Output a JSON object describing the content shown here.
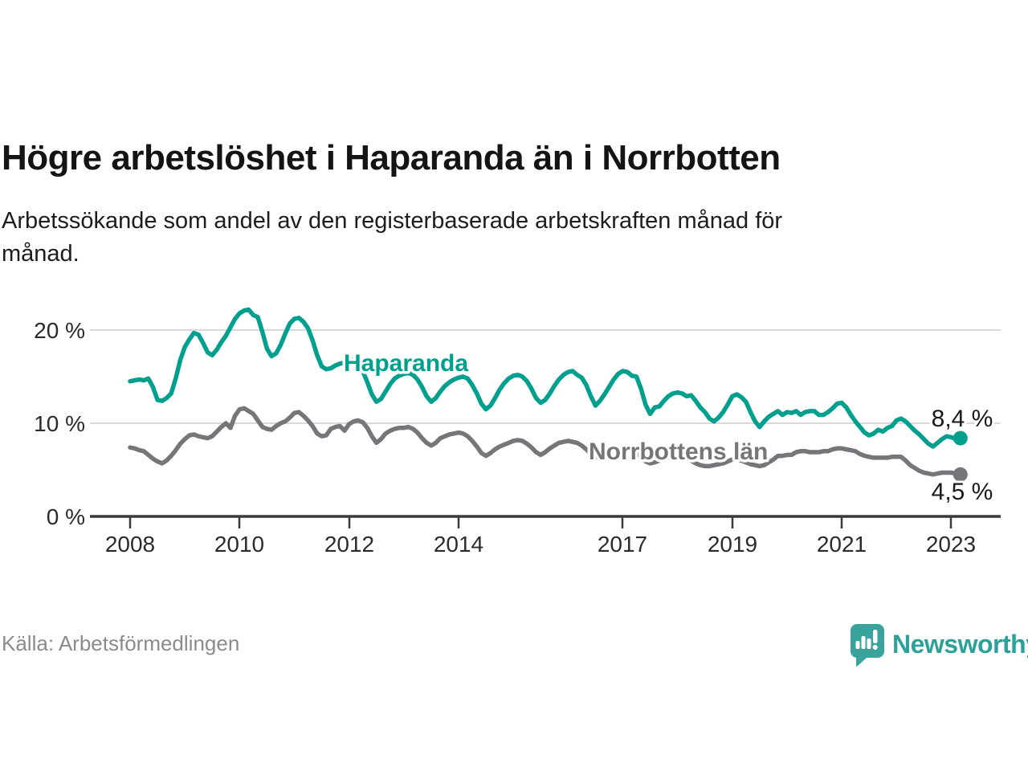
{
  "header": {
    "title": "Högre arbetslöshet i Haparanda än i Norrbotten",
    "subtitle": "Arbetssökande som andel av den registerbaserade arbetskraften månad för månad."
  },
  "footer": {
    "source": "Källa: Arbetsförmedlingen",
    "brand": "Newsworthy"
  },
  "colors": {
    "haparanda": "#009f8e",
    "norrbotten": "#76767a",
    "grid": "#d9d9d9",
    "axis": "#3a3a3e",
    "logo_teal": "#3ba39d"
  },
  "chart_data": {
    "type": "line",
    "title": "Högre arbetslöshet i Haparanda än i Norrbotten",
    "subtitle": "Arbetssökande som andel av den registerbaserade arbetskraften månad för månad.",
    "unit": "percent of registered labour force",
    "x_start": "2008-01",
    "x_end": "2023-03",
    "x_frequency": "monthly",
    "x_ticks": [
      "2008",
      "2010",
      "2012",
      "2014",
      "2017",
      "2019",
      "2021",
      "2023"
    ],
    "y_ticks": [
      "0 %",
      "10 %",
      "20 %"
    ],
    "y_gridlines": [
      0,
      10,
      20
    ],
    "ylim": [
      0,
      23
    ],
    "grid": "horizontal",
    "legend_position": "inline-labels",
    "series": [
      {
        "name": "Haparanda",
        "color": "#009f8e",
        "end_label": "8,4 %",
        "last_value": 8.4,
        "values": [
          14.5,
          14.6,
          14.7,
          14.6,
          14.8,
          13.9,
          12.5,
          12.4,
          12.7,
          13.2,
          14.8,
          16.8,
          18.2,
          19.0,
          19.7,
          19.5,
          18.6,
          17.6,
          17.3,
          17.9,
          18.7,
          19.4,
          20.3,
          21.2,
          21.8,
          22.1,
          22.2,
          21.6,
          21.4,
          19.8,
          18.0,
          17.2,
          17.5,
          18.4,
          19.6,
          20.7,
          21.2,
          21.3,
          20.9,
          20.2,
          18.9,
          17.3,
          16.1,
          15.8,
          15.9,
          16.2,
          16.4,
          16.5,
          16.7,
          16.8,
          16.4,
          15.6,
          14.4,
          13.1,
          12.3,
          12.6,
          13.4,
          14.2,
          14.8,
          15.1,
          15.3,
          15.4,
          15.2,
          14.7,
          13.9,
          12.9,
          12.3,
          12.7,
          13.4,
          14.0,
          14.4,
          14.7,
          14.9,
          15.0,
          14.8,
          14.1,
          13.2,
          12.1,
          11.5,
          11.9,
          12.7,
          13.6,
          14.3,
          14.8,
          15.1,
          15.2,
          15.0,
          14.5,
          13.7,
          12.7,
          12.2,
          12.5,
          13.2,
          14.0,
          14.7,
          15.2,
          15.5,
          15.6,
          15.2,
          14.9,
          14.1,
          12.9,
          11.9,
          12.4,
          13.1,
          13.9,
          14.7,
          15.3,
          15.6,
          15.5,
          15.1,
          15.0,
          13.7,
          12.0,
          11.0,
          11.7,
          11.8,
          12.4,
          12.9,
          13.2,
          13.3,
          13.2,
          12.9,
          13.0,
          12.4,
          11.7,
          11.2,
          10.5,
          10.2,
          10.6,
          11.2,
          12.0,
          12.9,
          13.1,
          12.8,
          12.3,
          11.2,
          10.2,
          9.6,
          10.2,
          10.7,
          11.0,
          11.3,
          10.9,
          11.2,
          11.1,
          11.3,
          10.9,
          11.2,
          11.3,
          11.3,
          10.9,
          10.9,
          11.2,
          11.6,
          12.1,
          12.2,
          11.7,
          10.9,
          10.2,
          9.6,
          9.0,
          8.7,
          8.9,
          9.3,
          9.1,
          9.5,
          9.7,
          10.3,
          10.5,
          10.2,
          9.7,
          9.2,
          8.8,
          8.3,
          7.8,
          7.5,
          7.9,
          8.3,
          8.6,
          8.5,
          8.3,
          8.4
        ]
      },
      {
        "name": "Norrbottens län",
        "color": "#76767a",
        "end_label": "4,5 %",
        "last_value": 4.5,
        "values": [
          7.4,
          7.3,
          7.1,
          7.0,
          6.6,
          6.2,
          5.9,
          5.7,
          6.0,
          6.5,
          7.1,
          7.8,
          8.3,
          8.7,
          8.8,
          8.6,
          8.5,
          8.4,
          8.6,
          9.1,
          9.6,
          10.0,
          9.5,
          10.8,
          11.5,
          11.6,
          11.3,
          11.0,
          10.3,
          9.6,
          9.4,
          9.3,
          9.7,
          10.0,
          10.2,
          10.6,
          11.1,
          11.2,
          10.8,
          10.3,
          9.7,
          8.9,
          8.6,
          8.7,
          9.4,
          9.6,
          9.7,
          9.2,
          9.9,
          10.2,
          10.3,
          10.1,
          9.5,
          8.6,
          7.9,
          8.3,
          8.9,
          9.2,
          9.4,
          9.5,
          9.5,
          9.6,
          9.4,
          9.0,
          8.4,
          7.9,
          7.6,
          7.9,
          8.4,
          8.6,
          8.8,
          8.9,
          9.0,
          8.9,
          8.6,
          8.1,
          7.5,
          6.8,
          6.5,
          6.8,
          7.2,
          7.5,
          7.7,
          7.9,
          8.1,
          8.2,
          8.1,
          7.8,
          7.4,
          6.9,
          6.6,
          6.9,
          7.3,
          7.6,
          7.9,
          8.0,
          8.1,
          8.0,
          7.9,
          7.6,
          7.2,
          6.7,
          6.4,
          6.3,
          6.6,
          6.8,
          7.0,
          7.1,
          7.2,
          7.2,
          7.0,
          6.8,
          6.4,
          5.9,
          5.7,
          5.8,
          6.0,
          6.2,
          6.3,
          6.4,
          6.5,
          6.4,
          6.2,
          6.0,
          5.7,
          5.5,
          5.4,
          5.4,
          5.5,
          5.6,
          5.7,
          5.9,
          6.1,
          6.1,
          6.0,
          5.8,
          5.6,
          5.5,
          5.4,
          5.5,
          5.8,
          6.1,
          6.5,
          6.5,
          6.6,
          6.6,
          6.9,
          7.0,
          7.0,
          6.9,
          6.9,
          6.9,
          7.0,
          7.0,
          7.2,
          7.3,
          7.3,
          7.2,
          7.1,
          7.0,
          6.7,
          6.5,
          6.4,
          6.3,
          6.3,
          6.3,
          6.3,
          6.4,
          6.4,
          6.4,
          6.0,
          5.5,
          5.2,
          4.9,
          4.7,
          4.6,
          4.5,
          4.6,
          4.7,
          4.7,
          4.7,
          4.6,
          4.5
        ]
      }
    ]
  }
}
